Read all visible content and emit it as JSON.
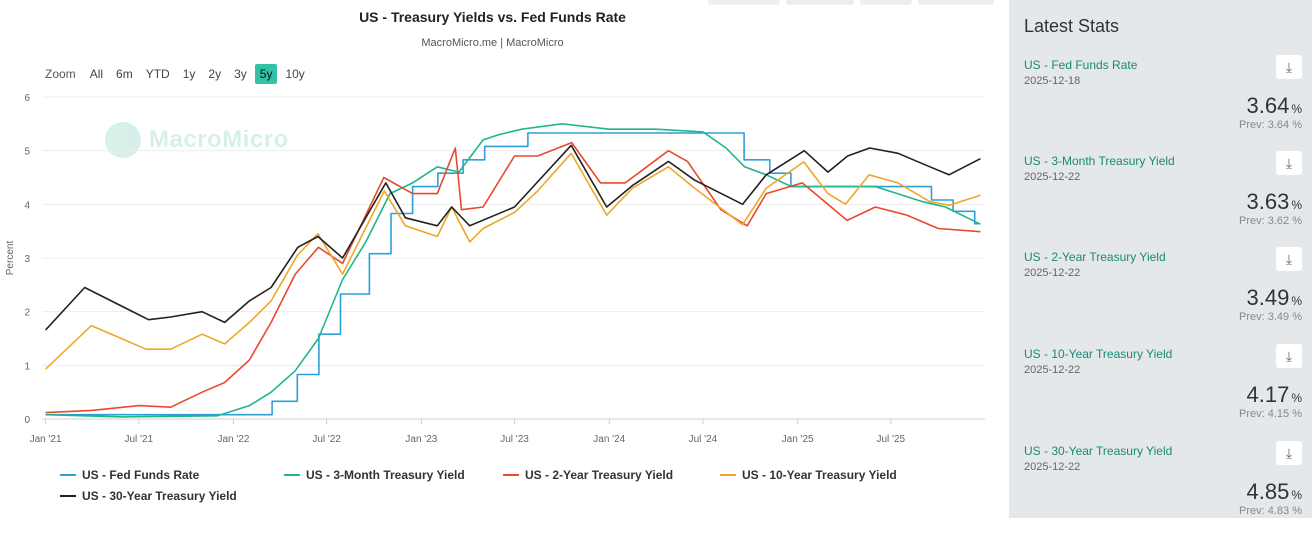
{
  "chart_data": {
    "type": "line",
    "title": "US - Treasury Yields vs. Fed Funds Rate",
    "subtitle": "MacroMicro.me | MacroMicro",
    "ylabel": "Percent",
    "ylim": [
      0,
      6
    ],
    "xlim": [
      "2020-12-25",
      "2025-12-31"
    ],
    "y_ticks": [
      "0",
      "1",
      "2",
      "3",
      "4",
      "5",
      "6"
    ],
    "x_ticks": [
      {
        "label": "Jan '21",
        "date": "2021-01-01"
      },
      {
        "label": "Jul '21",
        "date": "2021-07-01"
      },
      {
        "label": "Jan '22",
        "date": "2022-01-01"
      },
      {
        "label": "Jul '22",
        "date": "2022-07-01"
      },
      {
        "label": "Jan '23",
        "date": "2023-01-01"
      },
      {
        "label": "Jul '23",
        "date": "2023-07-01"
      },
      {
        "label": "Jan '24",
        "date": "2024-01-01"
      },
      {
        "label": "Jul '24",
        "date": "2024-07-01"
      },
      {
        "label": "Jan '25",
        "date": "2025-01-01"
      },
      {
        "label": "Jul '25",
        "date": "2025-07-01"
      }
    ],
    "grid": true,
    "legend_position": "bottom",
    "series": [
      {
        "name": "US - Fed Funds Rate",
        "color": "#2e9fd8",
        "step": true,
        "x": [
          "2021-01-01",
          "2022-03-17",
          "2022-05-05",
          "2022-06-16",
          "2022-07-28",
          "2022-09-22",
          "2022-11-03",
          "2022-12-15",
          "2023-02-02",
          "2023-03-23",
          "2023-05-04",
          "2023-07-27",
          "2024-09-19",
          "2024-11-08",
          "2024-12-19",
          "2025-09-18",
          "2025-10-30",
          "2025-12-11",
          "2025-12-18"
        ],
        "y": [
          0.08,
          0.33,
          0.83,
          1.58,
          2.33,
          3.08,
          3.83,
          4.33,
          4.58,
          4.83,
          5.08,
          5.33,
          4.83,
          4.58,
          4.33,
          4.08,
          3.87,
          3.64,
          3.64
        ]
      },
      {
        "name": "US - 3-Month Treasury Yield",
        "color": "#1fb58f",
        "x": [
          "2021-01-01",
          "2021-06-01",
          "2021-12-01",
          "2022-02-01",
          "2022-03-15",
          "2022-05-01",
          "2022-06-15",
          "2022-08-01",
          "2022-09-15",
          "2022-11-01",
          "2022-12-15",
          "2023-02-01",
          "2023-03-15",
          "2023-05-01",
          "2023-06-01",
          "2023-07-15",
          "2023-10-01",
          "2024-01-01",
          "2024-04-01",
          "2024-07-01",
          "2024-08-15",
          "2024-09-20",
          "2024-11-01",
          "2024-12-20",
          "2025-03-01",
          "2025-06-01",
          "2025-09-01",
          "2025-10-15",
          "2025-12-22"
        ],
        "y": [
          0.08,
          0.04,
          0.06,
          0.25,
          0.5,
          0.9,
          1.5,
          2.6,
          3.3,
          4.2,
          4.4,
          4.7,
          4.6,
          5.2,
          5.3,
          5.4,
          5.5,
          5.4,
          5.4,
          5.35,
          5.05,
          4.7,
          4.55,
          4.33,
          4.33,
          4.33,
          4.05,
          3.95,
          3.63
        ]
      },
      {
        "name": "US - 2-Year Treasury Yield",
        "color": "#e84a2e",
        "x": [
          "2021-01-01",
          "2021-04-01",
          "2021-07-01",
          "2021-09-01",
          "2021-11-01",
          "2021-12-15",
          "2022-02-01",
          "2022-03-15",
          "2022-05-01",
          "2022-06-15",
          "2022-08-01",
          "2022-09-15",
          "2022-10-20",
          "2022-12-15",
          "2023-02-01",
          "2023-03-08",
          "2023-03-20",
          "2023-05-01",
          "2023-07-01",
          "2023-08-15",
          "2023-10-20",
          "2023-12-15",
          "2024-02-01",
          "2024-04-25",
          "2024-06-01",
          "2024-08-05",
          "2024-09-25",
          "2024-11-01",
          "2025-01-10",
          "2025-04-07",
          "2025-06-01",
          "2025-08-01",
          "2025-10-01",
          "2025-12-22"
        ],
        "y": [
          0.12,
          0.16,
          0.25,
          0.22,
          0.5,
          0.68,
          1.1,
          1.8,
          2.7,
          3.2,
          2.9,
          3.8,
          4.5,
          4.2,
          4.2,
          5.05,
          3.9,
          3.95,
          4.9,
          4.9,
          5.15,
          4.4,
          4.4,
          5.0,
          4.8,
          3.9,
          3.6,
          4.2,
          4.4,
          3.7,
          3.95,
          3.8,
          3.55,
          3.49
        ]
      },
      {
        "name": "US - 10-Year Treasury Yield",
        "color": "#f0a628",
        "x": [
          "2021-01-01",
          "2021-03-31",
          "2021-07-15",
          "2021-09-01",
          "2021-11-01",
          "2021-12-15",
          "2022-02-01",
          "2022-03-15",
          "2022-05-05",
          "2022-06-14",
          "2022-08-01",
          "2022-10-21",
          "2022-12-01",
          "2023-02-01",
          "2023-03-01",
          "2023-04-05",
          "2023-05-01",
          "2023-07-01",
          "2023-08-15",
          "2023-10-19",
          "2023-12-27",
          "2024-02-15",
          "2024-04-25",
          "2024-06-15",
          "2024-09-16",
          "2024-11-01",
          "2025-01-13",
          "2025-03-01",
          "2025-04-04",
          "2025-05-20",
          "2025-07-15",
          "2025-09-15",
          "2025-10-22",
          "2025-12-22"
        ],
        "y": [
          0.93,
          1.74,
          1.3,
          1.3,
          1.58,
          1.4,
          1.8,
          2.2,
          3.05,
          3.45,
          2.7,
          4.25,
          3.6,
          3.4,
          3.95,
          3.3,
          3.55,
          3.85,
          4.25,
          4.95,
          3.8,
          4.3,
          4.7,
          4.3,
          3.62,
          4.3,
          4.79,
          4.2,
          4.0,
          4.55,
          4.4,
          4.05,
          3.98,
          4.17
        ]
      },
      {
        "name": "US - 30-Year Treasury Yield",
        "color": "#222222",
        "x": [
          "2021-01-01",
          "2021-03-18",
          "2021-07-20",
          "2021-09-01",
          "2021-11-01",
          "2021-12-15",
          "2022-02-01",
          "2022-03-15",
          "2022-05-06",
          "2022-06-14",
          "2022-08-01",
          "2022-10-24",
          "2022-12-01",
          "2023-02-01",
          "2023-03-01",
          "2023-04-05",
          "2023-07-01",
          "2023-10-19",
          "2023-12-27",
          "2024-02-15",
          "2024-04-25",
          "2024-06-15",
          "2024-09-16",
          "2024-11-01",
          "2025-01-14",
          "2025-03-01",
          "2025-04-08",
          "2025-05-21",
          "2025-07-15",
          "2025-09-15",
          "2025-10-22",
          "2025-12-22"
        ],
        "y": [
          1.66,
          2.45,
          1.85,
          1.9,
          2.0,
          1.8,
          2.2,
          2.45,
          3.2,
          3.4,
          3.0,
          4.4,
          3.75,
          3.6,
          3.95,
          3.6,
          3.95,
          5.1,
          3.95,
          4.35,
          4.8,
          4.45,
          4.0,
          4.55,
          5.0,
          4.6,
          4.9,
          5.05,
          4.95,
          4.7,
          4.55,
          4.85
        ]
      }
    ]
  },
  "zoom": {
    "label": "Zoom",
    "buttons": [
      "All",
      "6m",
      "YTD",
      "1y",
      "2y",
      "3y",
      "5y",
      "10y"
    ],
    "active": "5y"
  },
  "watermark": "MacroMicro",
  "stats": {
    "title": "Latest Stats",
    "items": [
      {
        "name": "US - Fed Funds Rate",
        "date": "2025-12-18",
        "value": "3.64",
        "unit": "%",
        "prev": "Prev: 3.64 %"
      },
      {
        "name": "US - 3-Month Treasury Yield",
        "date": "2025-12-22",
        "value": "3.63",
        "unit": "%",
        "prev": "Prev: 3.62 %"
      },
      {
        "name": "US - 2-Year Treasury Yield",
        "date": "2025-12-22",
        "value": "3.49",
        "unit": "%",
        "prev": "Prev: 3.49 %"
      },
      {
        "name": "US - 10-Year Treasury Yield",
        "date": "2025-12-22",
        "value": "4.17",
        "unit": "%",
        "prev": "Prev: 4.15 %"
      },
      {
        "name": "US - 30-Year Treasury Yield",
        "date": "2025-12-22",
        "value": "4.85",
        "unit": "%",
        "prev": "Prev: 4.83 %"
      }
    ]
  },
  "icons": {
    "download": "download-icon"
  }
}
